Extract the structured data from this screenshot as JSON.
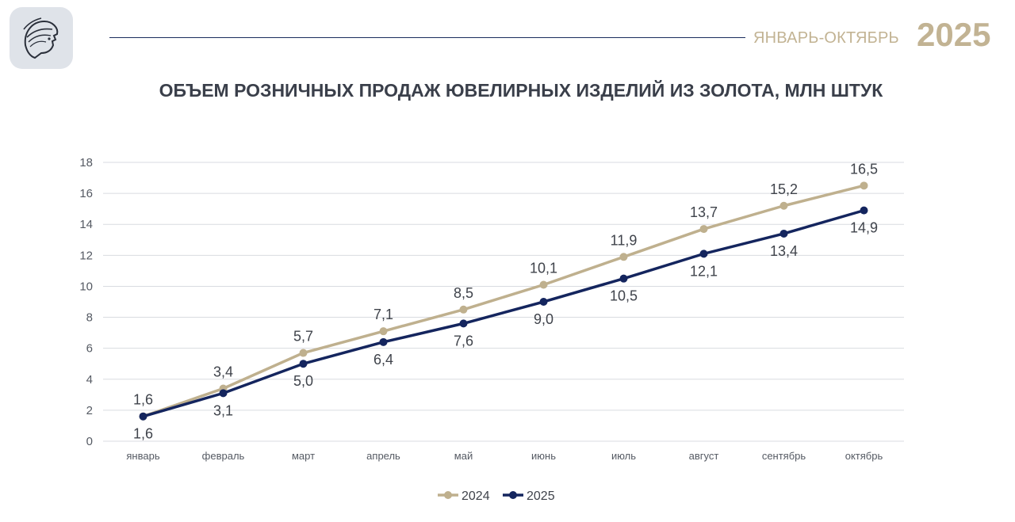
{
  "header": {
    "period": "ЯНВАРЬ-ОКТЯБРЬ",
    "year": "2025",
    "logo_icon": "minerva-head-icon"
  },
  "chart_data": {
    "type": "line",
    "title": "ОБЪЕМ РОЗНИЧНЫХ ПРОДАЖ ЮВЕЛИРНЫХ ИЗДЕЛИЙ ИЗ ЗОЛОТА, МЛН ШТУК",
    "xlabel": "",
    "ylabel": "",
    "categories": [
      "январь",
      "февраль",
      "март",
      "апрель",
      "май",
      "июнь",
      "июль",
      "август",
      "сентябрь",
      "октябрь"
    ],
    "ylim": [
      0,
      18
    ],
    "yticks": [
      0,
      2,
      4,
      6,
      8,
      10,
      12,
      14,
      16,
      18
    ],
    "grid": true,
    "legend": "bottom",
    "series": [
      {
        "name": "2024",
        "color": "#bfb08e",
        "values": [
          1.6,
          3.4,
          5.7,
          7.1,
          8.5,
          10.1,
          11.9,
          13.7,
          15.2,
          16.5
        ],
        "labels": [
          "1,6",
          "3,4",
          "5,7",
          "7,1",
          "8,5",
          "10,1",
          "11,9",
          "13,7",
          "15,2",
          "16,5"
        ],
        "label_position": "above"
      },
      {
        "name": "2025",
        "color": "#14255e",
        "values": [
          1.6,
          3.1,
          5.0,
          6.4,
          7.6,
          9.0,
          10.5,
          12.1,
          13.4,
          14.9
        ],
        "labels": [
          "1,6",
          "3,1",
          "5,0",
          "6,4",
          "7,6",
          "9,0",
          "10,5",
          "12,1",
          "13,4",
          "14,9"
        ],
        "label_position": "below"
      }
    ]
  }
}
